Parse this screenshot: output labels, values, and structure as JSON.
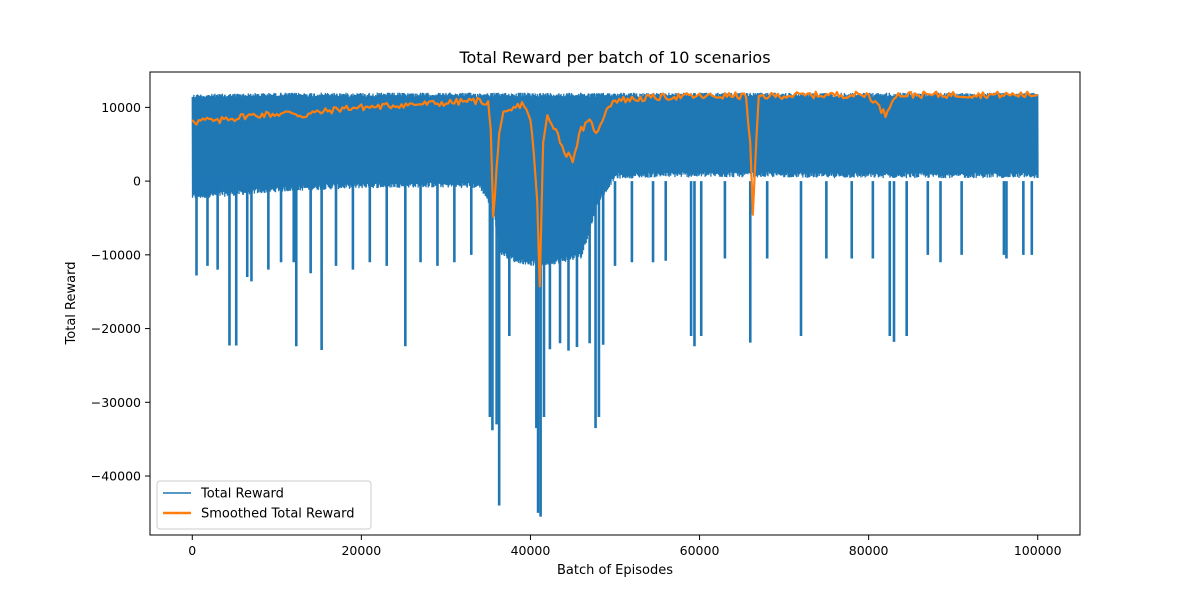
{
  "chart_data": {
    "type": "line",
    "title": "Total Reward per batch of 10 scenarios",
    "xlabel": "Batch of Episodes",
    "ylabel": "Total Reward",
    "xlim": [
      -5000,
      105000
    ],
    "ylim": [
      -48000,
      14800
    ],
    "xticks": [
      0,
      20000,
      40000,
      60000,
      80000,
      100000
    ],
    "yticks": [
      -40000,
      -30000,
      -20000,
      -10000,
      0,
      10000
    ],
    "grid": false,
    "legend_position": "lower-left",
    "series": [
      {
        "name": "Total Reward",
        "color": "#1f77b4",
        "envelope_x": [
          0,
          5000,
          10000,
          15000,
          20000,
          25000,
          30000,
          34000,
          35500,
          36500,
          38000,
          40000,
          41000,
          42000,
          44000,
          46000,
          48000,
          50000,
          55000,
          60000,
          65000,
          70000,
          75000,
          80000,
          85000,
          90000,
          95000,
          100000
        ],
        "envelope_upper": [
          11800,
          11900,
          12000,
          12000,
          12000,
          12000,
          12000,
          12000,
          12000,
          12000,
          12000,
          12000,
          12000,
          12000,
          12000,
          12000,
          12000,
          12000,
          12000,
          12000,
          12000,
          12000,
          12000,
          12000,
          12000,
          12000,
          12000,
          12000
        ],
        "envelope_lower": [
          -2500,
          -2000,
          -1500,
          -1200,
          -1000,
          -900,
          -900,
          -1000,
          -4000,
          -10000,
          -11000,
          -11500,
          -11500,
          -11500,
          -11000,
          -10500,
          -3000,
          300,
          500,
          500,
          500,
          500,
          400,
          400,
          400,
          400,
          400,
          400
        ],
        "downward_spikes": [
          [
            500,
            -12800
          ],
          [
            1800,
            -11500
          ],
          [
            3000,
            -12000
          ],
          [
            4400,
            -22300
          ],
          [
            5200,
            -22300
          ],
          [
            6500,
            -13000
          ],
          [
            7000,
            -13600
          ],
          [
            9000,
            -12000
          ],
          [
            10500,
            -11000
          ],
          [
            12000,
            -11000
          ],
          [
            12300,
            -22400
          ],
          [
            14000,
            -12500
          ],
          [
            15300,
            -22900
          ],
          [
            17000,
            -11500
          ],
          [
            19000,
            -12000
          ],
          [
            21000,
            -11000
          ],
          [
            23000,
            -11500
          ],
          [
            25200,
            -22400
          ],
          [
            27000,
            -11000
          ],
          [
            29000,
            -11500
          ],
          [
            31000,
            -11000
          ],
          [
            33000,
            -10000
          ],
          [
            35200,
            -32000
          ],
          [
            35500,
            -33800
          ],
          [
            36000,
            -33000
          ],
          [
            36300,
            -44000
          ],
          [
            37500,
            -21000
          ],
          [
            38500,
            -10800
          ],
          [
            40700,
            -33500
          ],
          [
            40900,
            -45000
          ],
          [
            41200,
            -45500
          ],
          [
            41600,
            -32000
          ],
          [
            42300,
            -22800
          ],
          [
            43500,
            -22000
          ],
          [
            44500,
            -23000
          ],
          [
            45500,
            -22500
          ],
          [
            47000,
            -22000
          ],
          [
            47700,
            -33500
          ],
          [
            48100,
            -32000
          ],
          [
            48600,
            -22200
          ],
          [
            50000,
            -11500
          ],
          [
            52000,
            -11000
          ],
          [
            54500,
            -11000
          ],
          [
            56000,
            -10800
          ],
          [
            59000,
            -21000
          ],
          [
            59400,
            -22400
          ],
          [
            60200,
            -21000
          ],
          [
            63000,
            -10500
          ],
          [
            66000,
            -21900
          ],
          [
            68000,
            -10500
          ],
          [
            72000,
            -21000
          ],
          [
            75000,
            -10500
          ],
          [
            78000,
            -10500
          ],
          [
            80500,
            -10500
          ],
          [
            82500,
            -21000
          ],
          [
            83000,
            -21800
          ],
          [
            84500,
            -21000
          ],
          [
            87000,
            -10000
          ],
          [
            88500,
            -11000
          ],
          [
            91000,
            -10000
          ],
          [
            96000,
            -10000
          ],
          [
            96300,
            -10500
          ],
          [
            98300,
            -10000
          ],
          [
            99300,
            -10000
          ]
        ]
      },
      {
        "name": "Smoothed Total Reward",
        "color": "#ff7f0e",
        "x": [
          0,
          500,
          1000,
          2000,
          3000,
          4000,
          5000,
          6000,
          8000,
          10000,
          12000,
          13000,
          14000,
          16000,
          18000,
          20000,
          22000,
          24000,
          26000,
          28000,
          30000,
          32000,
          34000,
          35000,
          35300,
          35600,
          36000,
          36300,
          36800,
          37500,
          38000,
          39000,
          39500,
          40000,
          40400,
          40800,
          41100,
          41500,
          42000,
          43000,
          44000,
          45000,
          46000,
          47000,
          48000,
          49000,
          50000,
          52000,
          54000,
          56000,
          58000,
          60000,
          62000,
          64000,
          65500,
          66000,
          66300,
          67000,
          70000,
          75000,
          80000,
          82000,
          83000,
          84000,
          85000,
          87000,
          90000,
          95000,
          100000
        ],
        "y": [
          8500,
          8000,
          8200,
          8300,
          8000,
          8600,
          8500,
          8800,
          9000,
          9100,
          9300,
          8800,
          9200,
          9500,
          9900,
          10000,
          10100,
          10300,
          10400,
          10500,
          10600,
          10800,
          10900,
          10600,
          7000,
          -5000,
          2000,
          6000,
          9000,
          9400,
          9800,
          10500,
          10000,
          8000,
          4000,
          -3000,
          -14300,
          5000,
          9000,
          7000,
          4000,
          3000,
          7000,
          8000,
          6500,
          10000,
          11000,
          11100,
          11300,
          11400,
          11500,
          11500,
          11500,
          11600,
          11500,
          5000,
          -4500,
          11500,
          11600,
          11700,
          11700,
          9000,
          11600,
          11700,
          11700,
          11700,
          11700,
          11700,
          11700
        ]
      }
    ]
  }
}
